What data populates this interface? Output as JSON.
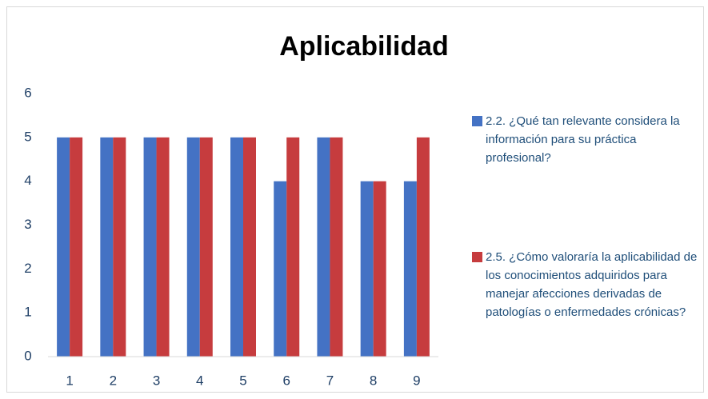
{
  "chart_data": {
    "type": "bar",
    "title": "Aplicabilidad",
    "categories": [
      "1",
      "2",
      "3",
      "4",
      "5",
      "6",
      "7",
      "8",
      "9"
    ],
    "series": [
      {
        "name": "2.2. ¿Qué tan relevante considera la información para su práctica profesional?",
        "color": "#4472c4",
        "values": [
          5,
          5,
          5,
          5,
          5,
          4,
          5,
          4,
          4
        ]
      },
      {
        "name": "2.5. ¿Cómo valoraría la aplicabilidad de los conocimientos adquiridos para manejar afecciones derivadas de patologías o enfermedades crónicas?",
        "color": "#c63c3e",
        "values": [
          5,
          5,
          5,
          5,
          5,
          5,
          5,
          4,
          5
        ]
      }
    ],
    "ylim": [
      0,
      6
    ],
    "yticks": [
      0,
      1,
      2,
      3,
      4,
      5,
      6
    ],
    "grid": false,
    "legend": "right"
  }
}
